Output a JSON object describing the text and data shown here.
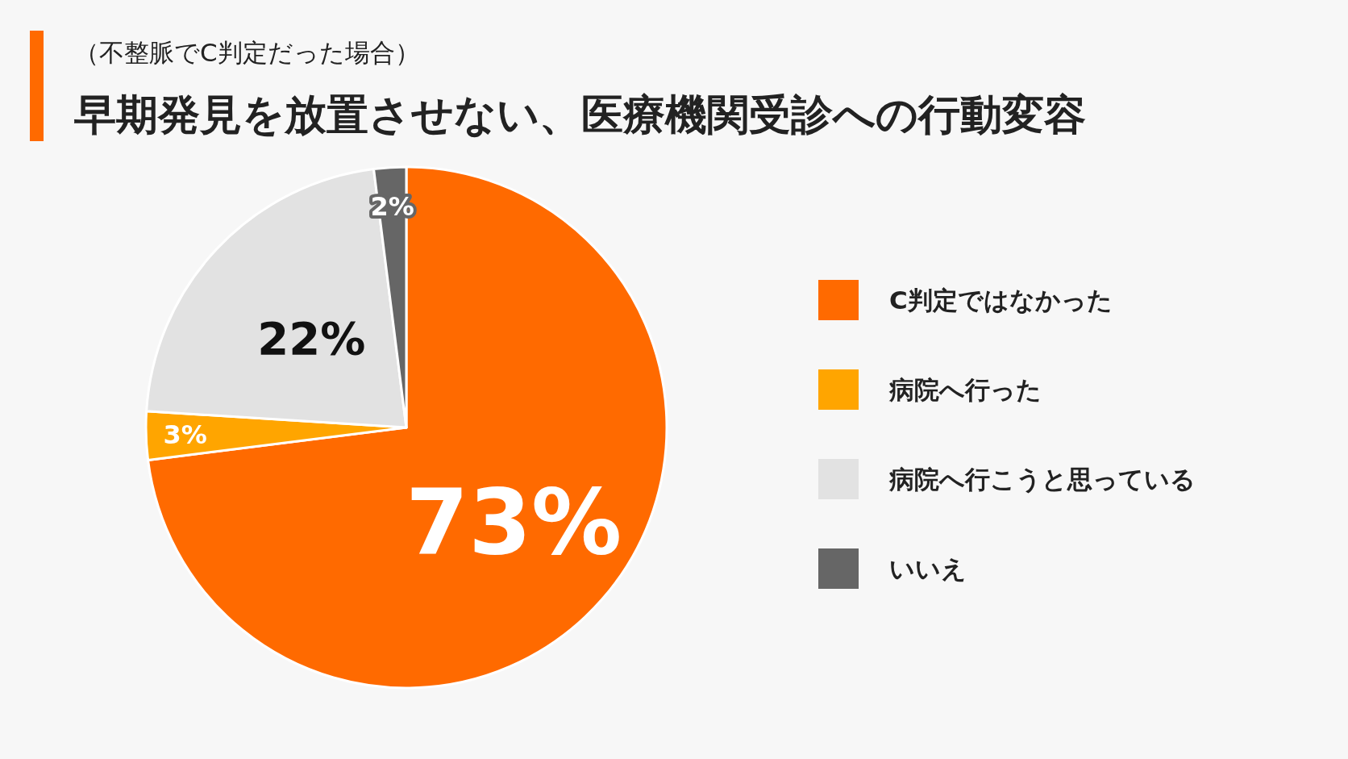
{
  "chart_data": {
    "type": "pie",
    "subtitle": "（不整脈でC判定だった場合）",
    "title": "早期発見を放置させない、医療機関受診への行動変容",
    "categories": [
      "C判定ではなかった",
      "病院へ行った",
      "病院へ行こうと思っている",
      "いいえ"
    ],
    "values": [
      73,
      3,
      22,
      2
    ],
    "colors": [
      "#ff6a00",
      "#ffa500",
      "#e2e2e2",
      "#666666"
    ],
    "value_labels": [
      "73%",
      "3%",
      "22%",
      "2%"
    ],
    "legend": "right"
  }
}
